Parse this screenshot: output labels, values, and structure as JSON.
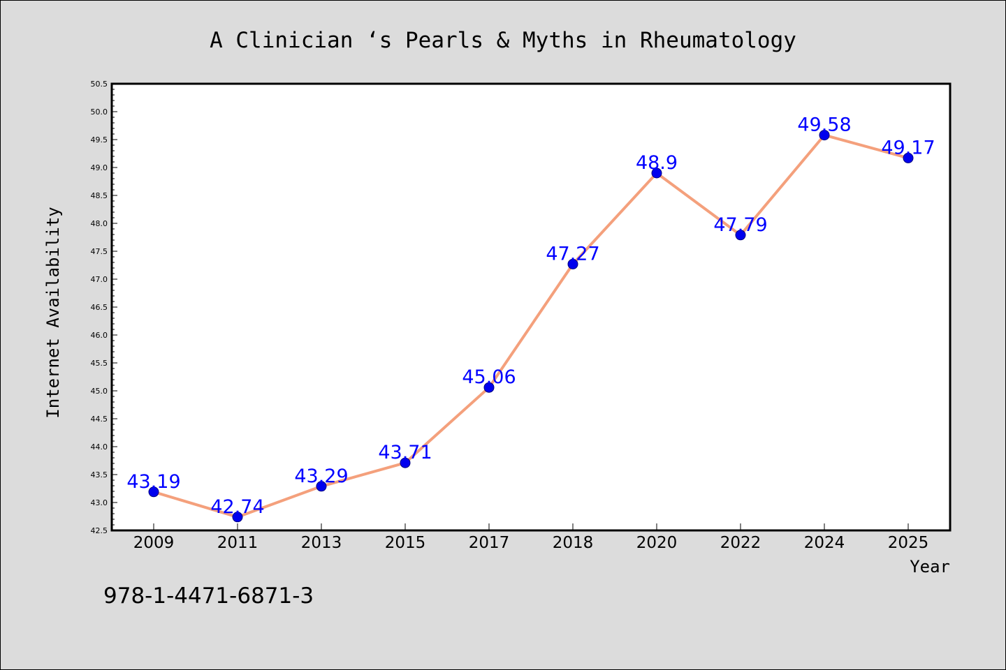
{
  "chart_data": {
    "type": "line",
    "title": "A Clinician ‘s Pearls & Myths in Rheumatology",
    "xlabel": "Year",
    "ylabel": "Internet Availability",
    "categories": [
      "2009",
      "2011",
      "2013",
      "2015",
      "2017",
      "2018",
      "2020",
      "2022",
      "2024",
      "2025"
    ],
    "series": [
      {
        "values": [
          43.19,
          42.74,
          43.29,
          43.71,
          45.06,
          47.27,
          48.9,
          47.79,
          49.58,
          49.17
        ],
        "labels": [
          "43.19",
          "42.74",
          "43.29",
          "43.71",
          "45.06",
          "47.27",
          "48.9",
          "47.79",
          "49.58",
          "49.17"
        ],
        "line_color": "#f4a07c",
        "marker_color": "#0000ee",
        "label_color": "#0000ff"
      }
    ],
    "ylim": [
      42.5,
      50.5
    ],
    "yticks": [
      "42.5",
      "43.0",
      "43.5",
      "44.0",
      "44.5",
      "45.0",
      "45.5",
      "46.0",
      "46.5",
      "47.0",
      "47.5",
      "48.0",
      "48.5",
      "49.0",
      "49.5",
      "50.0",
      "50.5"
    ],
    "grid": false,
    "legend": "none",
    "note": "978-1-4471-6871-3",
    "background": "#dcdcdc",
    "plot_background": "#ffffff"
  }
}
